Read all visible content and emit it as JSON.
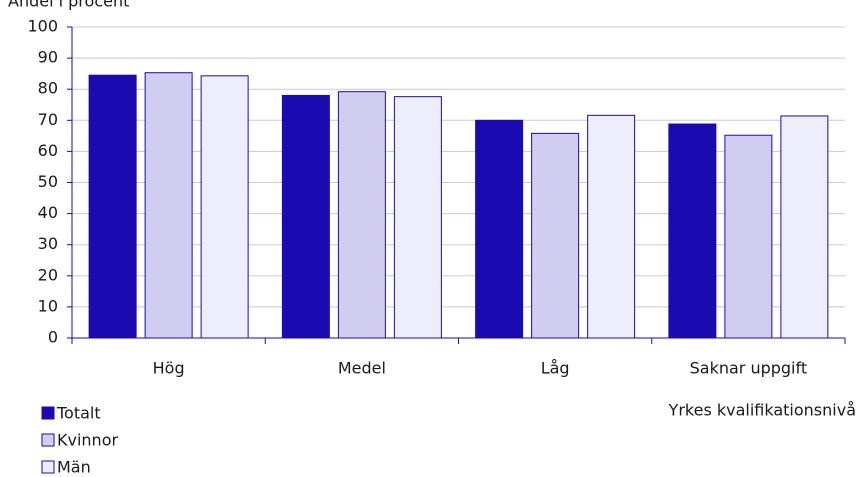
{
  "chart_data": {
    "type": "bar",
    "ylabel": "Andel i procent",
    "xlabel": "Yrkes kvalifikationsnivå",
    "categories": [
      "Hög",
      "Medel",
      "Låg",
      "Saknar uppgift"
    ],
    "series": [
      {
        "name": "Totalt",
        "color": "#1a0ab0",
        "values": [
          84.5,
          78,
          70,
          68.8
        ]
      },
      {
        "name": "Kvinnor",
        "color": "#d1cdf1",
        "values": [
          85.3,
          79.2,
          65.8,
          65.2
        ]
      },
      {
        "name": "Män",
        "color": "#ededfb",
        "values": [
          84.3,
          77.6,
          71.6,
          71.4
        ]
      }
    ],
    "ylim": [
      0,
      100
    ],
    "yticks": [
      0,
      10,
      20,
      30,
      40,
      50,
      60,
      70,
      80,
      90,
      100
    ],
    "grid": true,
    "legend": "bottom-left"
  }
}
